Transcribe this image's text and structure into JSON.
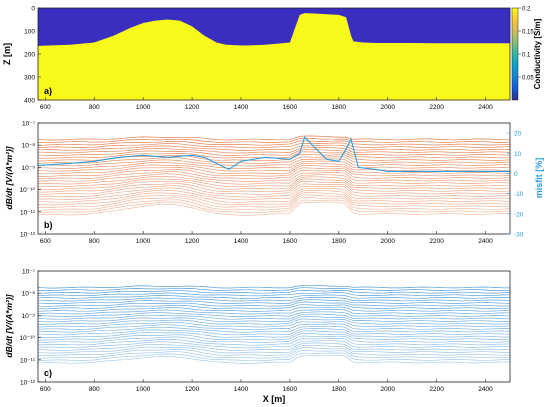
{
  "figure": {
    "xlabel": "X [m]",
    "x_ticks": [
      600,
      800,
      1000,
      1200,
      1400,
      1600,
      1800,
      2000,
      2200,
      2400
    ]
  },
  "chart_data": [
    {
      "type": "heatmap",
      "panel_label": "a)",
      "title": "",
      "xlabel": "",
      "ylabel": "Z [m]",
      "xlim": [
        570,
        2500
      ],
      "ylim": [
        400,
        0
      ],
      "y_ticks": [
        0,
        100,
        200,
        300,
        400
      ],
      "colorbar": {
        "label": "Conductivity [S/m]",
        "range": [
          0.0,
          0.2
        ],
        "ticks": [
          "0.2",
          "0.15",
          "0.1",
          "0.05"
        ],
        "colors": [
          "#352a87",
          "#0f5cdd",
          "#1481d6",
          "#06a4ca",
          "#2eb7a4",
          "#87bf77",
          "#d1bb59",
          "#fec832",
          "#f9fb0e"
        ]
      },
      "layers": [
        {
          "name": "resistive",
          "conductivity": 0.0,
          "color": "#3a2ec0"
        },
        {
          "name": "conductive",
          "conductivity": 0.2,
          "color": "#f8f81a"
        }
      ],
      "interface_depth": {
        "x": [
          570,
          700,
          800,
          880,
          950,
          1000,
          1050,
          1100,
          1150,
          1200,
          1250,
          1300,
          1340,
          1380,
          1420,
          1500,
          1600,
          1640,
          1660,
          1700,
          1760,
          1800,
          1830,
          1850,
          1860,
          1900,
          1950,
          2000,
          2100,
          2200,
          2300,
          2400,
          2500
        ],
        "z": [
          165,
          160,
          150,
          120,
          85,
          65,
          55,
          50,
          55,
          80,
          120,
          150,
          160,
          162,
          163,
          160,
          150,
          30,
          22,
          24,
          28,
          30,
          40,
          120,
          145,
          150,
          152,
          152,
          152,
          153,
          153,
          153,
          153
        ]
      }
    },
    {
      "type": "line",
      "panel_label": "b)",
      "title": "",
      "xlabel": "",
      "ylabel": "dB/dt [V/(A*m²)]",
      "ylabel_right": "misfit [%]",
      "y_scale": "log",
      "ylim": [
        1e-12,
        1e-07
      ],
      "y_ticks": [
        "10⁻⁷",
        "10⁻⁸",
        "10⁻⁹",
        "10⁻¹⁰",
        "10⁻¹¹",
        "10⁻¹²"
      ],
      "y_right_ticks": [
        20,
        10,
        0,
        -10,
        -20,
        -30
      ],
      "y_right_lim": [
        -30,
        25
      ],
      "curve_color": "#e07038",
      "curve_count": 30,
      "misfit": {
        "color": "#2a9ee0",
        "x": [
          570,
          700,
          800,
          900,
          1000,
          1100,
          1200,
          1250,
          1300,
          1350,
          1400,
          1500,
          1600,
          1640,
          1660,
          1700,
          1750,
          1800,
          1830,
          1850,
          1880,
          1950,
          2000,
          2100,
          2200,
          2300,
          2400,
          2500
        ],
        "values": [
          4,
          5,
          6,
          8,
          9,
          8,
          9,
          8,
          5,
          2,
          6,
          8,
          7,
          10,
          18,
          13,
          7,
          6,
          12,
          17,
          3,
          2,
          1,
          1,
          1,
          1,
          1,
          1
        ]
      }
    },
    {
      "type": "line",
      "panel_label": "c)",
      "title": "",
      "xlabel": "",
      "ylabel": "dB/dt [V/(A*m²)]",
      "y_scale": "log",
      "ylim": [
        1e-12,
        1e-07
      ],
      "y_ticks": [
        "10⁻⁷",
        "10⁻⁸",
        "10⁻⁹",
        "10⁻¹⁰",
        "10⁻¹¹",
        "10⁻¹²"
      ],
      "curve_color": "#3a90d6",
      "curve_count": 30
    }
  ]
}
